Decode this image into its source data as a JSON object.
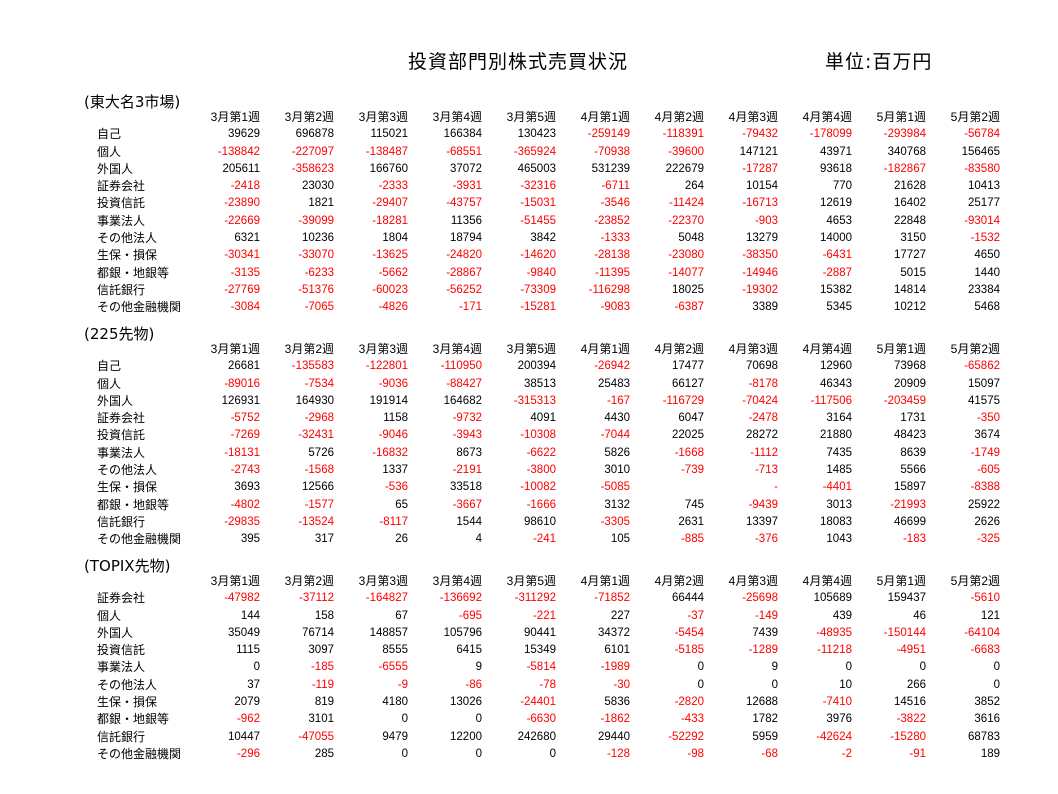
{
  "title": "投資部門別株式売買状況",
  "unit": "単位:百万円",
  "colors": {
    "negative": "#ff0000",
    "positive": "#000000"
  },
  "weeks": [
    "3月第1週",
    "3月第2週",
    "3月第3週",
    "3月第4週",
    "3月第5週",
    "4月第1週",
    "4月第2週",
    "4月第3週",
    "4月第4週",
    "5月第1週",
    "5月第2週"
  ],
  "sections": [
    {
      "title": "(東大名3市場)",
      "rows": [
        {
          "label": "自己",
          "values": [
            "39629",
            "696878",
            "115021",
            "166384",
            "130423",
            "-259149",
            "-118391",
            "-79432",
            "-178099",
            "-293984",
            "-56784"
          ]
        },
        {
          "label": "個人",
          "values": [
            "-138842",
            "-227097",
            "-138487",
            "-68551",
            "-365924",
            "-70938",
            "-39600",
            "147121",
            "43971",
            "340768",
            "156465"
          ]
        },
        {
          "label": "外国人",
          "values": [
            "205611",
            "-358623",
            "166760",
            "37072",
            "465003",
            "531239",
            "222679",
            "-17287",
            "93618",
            "-182867",
            "-83580"
          ]
        },
        {
          "label": "証券会社",
          "values": [
            "-2418",
            "23030",
            "-2333",
            "-3931",
            "-32316",
            "-6711",
            "264",
            "10154",
            "770",
            "21628",
            "10413"
          ]
        },
        {
          "label": "投資信託",
          "values": [
            "-23890",
            "1821",
            "-29407",
            "-43757",
            "-15031",
            "-3546",
            "-11424",
            "-16713",
            "12619",
            "16402",
            "25177"
          ]
        },
        {
          "label": "事業法人",
          "values": [
            "-22669",
            "-39099",
            "-18281",
            "11356",
            "-51455",
            "-23852",
            "-22370",
            "-903",
            "4653",
            "22848",
            "-93014"
          ]
        },
        {
          "label": "その他法人",
          "values": [
            "6321",
            "10236",
            "1804",
            "18794",
            "3842",
            "-1333",
            "5048",
            "13279",
            "14000",
            "3150",
            "-1532"
          ]
        },
        {
          "label": "生保・損保",
          "values": [
            "-30341",
            "-33070",
            "-13625",
            "-24820",
            "-14620",
            "-28138",
            "-23080",
            "-38350",
            "-6431",
            "17727",
            "4650"
          ]
        },
        {
          "label": "都銀・地銀等",
          "values": [
            "-3135",
            "-6233",
            "-5662",
            "-28867",
            "-9840",
            "-11395",
            "-14077",
            "-14946",
            "-2887",
            "5015",
            "1440"
          ]
        },
        {
          "label": "信託銀行",
          "values": [
            "-27769",
            "-51376",
            "-60023",
            "-56252",
            "-73309",
            "-116298",
            "18025",
            "-19302",
            "15382",
            "14814",
            "23384"
          ]
        },
        {
          "label": "その他金融機関",
          "values": [
            "-3084",
            "-7065",
            "-4826",
            "-171",
            "-15281",
            "-9083",
            "-6387",
            "3389",
            "5345",
            "10212",
            "5468"
          ]
        }
      ]
    },
    {
      "title": "(225先物)",
      "rows": [
        {
          "label": "自己",
          "values": [
            "26681",
            "-135583",
            "-122801",
            "-110950",
            "200394",
            "-26942",
            "17477",
            "70698",
            "12960",
            "73968",
            "-65862"
          ]
        },
        {
          "label": "個人",
          "values": [
            "-89016",
            "-7534",
            "-9036",
            "-88427",
            "38513",
            "25483",
            "66127",
            "-8178",
            "46343",
            "20909",
            "15097"
          ]
        },
        {
          "label": "外国人",
          "values": [
            "126931",
            "164930",
            "191914",
            "164682",
            "-315313",
            "-167",
            "-116729",
            "-70424",
            "-117506",
            "-203459",
            "41575"
          ]
        },
        {
          "label": "証券会社",
          "values": [
            "-5752",
            "-2968",
            "1158",
            "-9732",
            "4091",
            "4430",
            "6047",
            "-2478",
            "3164",
            "1731",
            "-350"
          ]
        },
        {
          "label": "投資信託",
          "values": [
            "-7269",
            "-32431",
            "-9046",
            "-3943",
            "-10308",
            "-7044",
            "22025",
            "28272",
            "21880",
            "48423",
            "3674"
          ]
        },
        {
          "label": "事業法人",
          "values": [
            "-18131",
            "5726",
            "-16832",
            "8673",
            "-6622",
            "5826",
            "-1668",
            "-1112",
            "7435",
            "8639",
            "-1749"
          ]
        },
        {
          "label": "その他法人",
          "values": [
            "-2743",
            "-1568",
            "1337",
            "-2191",
            "-3800",
            "3010",
            "-739",
            "-713",
            "1485",
            "5566",
            "-605"
          ]
        },
        {
          "label": "生保・損保",
          "values": [
            "3693",
            "12566",
            "-536",
            "33518",
            "-10082",
            "-5085",
            "",
            "-",
            "-4401",
            "15897",
            "-8388"
          ]
        },
        {
          "label": "都銀・地銀等",
          "values": [
            "-4802",
            "-1577",
            "65",
            "-3667",
            "-1666",
            "3132",
            "745",
            "-9439",
            "3013",
            "-21993",
            "25922"
          ]
        },
        {
          "label": "信託銀行",
          "values": [
            "-29835",
            "-13524",
            "-8117",
            "1544",
            "98610",
            "-3305",
            "2631",
            "13397",
            "18083",
            "46699",
            "2626"
          ]
        },
        {
          "label": "その他金融機関",
          "values": [
            "395",
            "317",
            "26",
            "4",
            "-241",
            "105",
            "-885",
            "-376",
            "1043",
            "-183",
            "-325"
          ]
        }
      ]
    },
    {
      "title": "(TOPIX先物)",
      "rows": [
        {
          "label": "証券会社",
          "values": [
            "-47982",
            "-37112",
            "-164827",
            "-136692",
            "-311292",
            "-71852",
            "66444",
            "-25698",
            "105689",
            "159437",
            "-5610"
          ]
        },
        {
          "label": "個人",
          "values": [
            "144",
            "158",
            "67",
            "-695",
            "-221",
            "227",
            "-37",
            "-149",
            "439",
            "46",
            "121"
          ]
        },
        {
          "label": "外国人",
          "values": [
            "35049",
            "76714",
            "148857",
            "105796",
            "90441",
            "34372",
            "-5454",
            "7439",
            "-48935",
            "-150144",
            "-64104"
          ]
        },
        {
          "label": "投資信託",
          "values": [
            "1115",
            "3097",
            "8555",
            "6415",
            "15349",
            "6101",
            "-5185",
            "-1289",
            "-11218",
            "-4951",
            "-6683"
          ]
        },
        {
          "label": "事業法人",
          "values": [
            "0",
            "-185",
            "-6555",
            "9",
            "-5814",
            "-1989",
            "0",
            "9",
            "0",
            "0",
            "0"
          ]
        },
        {
          "label": "その他法人",
          "values": [
            "37",
            "-119",
            "-9",
            "-86",
            "-78",
            "-30",
            "0",
            "0",
            "10",
            "266",
            "0"
          ]
        },
        {
          "label": "生保・損保",
          "values": [
            "2079",
            "819",
            "4180",
            "13026",
            "-24401",
            "5836",
            "-2820",
            "12688",
            "-7410",
            "14516",
            "3852"
          ]
        },
        {
          "label": "都銀・地銀等",
          "values": [
            "-962",
            "3101",
            "0",
            "0",
            "-6630",
            "-1862",
            "-433",
            "1782",
            "3976",
            "-3822",
            "3616"
          ]
        },
        {
          "label": "信託銀行",
          "values": [
            "10447",
            "-47055",
            "9479",
            "12200",
            "242680",
            "29440",
            "-52292",
            "5959",
            "-42624",
            "-15280",
            "68783"
          ]
        },
        {
          "label": "その他金融機関",
          "values": [
            "-296",
            "285",
            "0",
            "0",
            "0",
            "-128",
            "-98",
            "-68",
            "-2",
            "-91",
            "189"
          ]
        }
      ]
    }
  ]
}
